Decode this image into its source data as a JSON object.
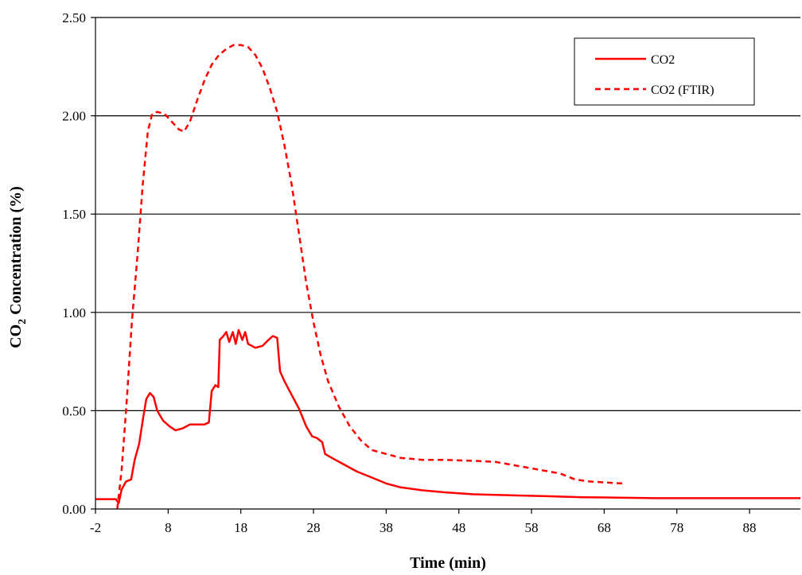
{
  "chart_data": {
    "type": "line",
    "title": "",
    "xlabel": "Time (min)",
    "ylabel_main": "CO",
    "ylabel_sub": "2",
    "ylabel_rest": " Concentration (%)",
    "xlim": [
      -2,
      95
    ],
    "ylim": [
      0,
      2.5
    ],
    "x_ticks": [
      -2,
      8,
      18,
      28,
      38,
      48,
      58,
      68,
      78,
      88
    ],
    "x_tick_labels": [
      "-2",
      "8",
      "18",
      "28",
      "38",
      "48",
      "58",
      "68",
      "78",
      "88"
    ],
    "y_ticks": [
      0,
      0.5,
      1.0,
      1.5,
      2.0,
      2.5
    ],
    "y_tick_labels": [
      "0.00",
      "0.50",
      "1.00",
      "1.50",
      "2.00",
      "2.50"
    ],
    "grid": "horizontal",
    "legend_position": "top-right",
    "series": [
      {
        "name": "CO2",
        "color": "#ff0000",
        "dash": "solid",
        "points": [
          [
            -2,
            0.05
          ],
          [
            0.8,
            0.05
          ],
          [
            1.2,
            0.03
          ],
          [
            1.6,
            0.1
          ],
          [
            2.2,
            0.14
          ],
          [
            2.9,
            0.15
          ],
          [
            3.4,
            0.25
          ],
          [
            4.0,
            0.33
          ],
          [
            4.5,
            0.45
          ],
          [
            5.0,
            0.56
          ],
          [
            5.5,
            0.59
          ],
          [
            6.0,
            0.57
          ],
          [
            6.5,
            0.5
          ],
          [
            7.3,
            0.45
          ],
          [
            8.2,
            0.42
          ],
          [
            9.0,
            0.4
          ],
          [
            10.0,
            0.41
          ],
          [
            11.0,
            0.43
          ],
          [
            12.0,
            0.43
          ],
          [
            13.0,
            0.43
          ],
          [
            13.6,
            0.44
          ],
          [
            14.0,
            0.6
          ],
          [
            14.5,
            0.63
          ],
          [
            14.9,
            0.62
          ],
          [
            15.1,
            0.86
          ],
          [
            15.6,
            0.88
          ],
          [
            16.0,
            0.9
          ],
          [
            16.4,
            0.85
          ],
          [
            16.9,
            0.9
          ],
          [
            17.3,
            0.84
          ],
          [
            17.7,
            0.91
          ],
          [
            18.2,
            0.86
          ],
          [
            18.6,
            0.9
          ],
          [
            19.0,
            0.84
          ],
          [
            20.0,
            0.82
          ],
          [
            21.0,
            0.83
          ],
          [
            21.8,
            0.86
          ],
          [
            22.4,
            0.88
          ],
          [
            23.0,
            0.87
          ],
          [
            23.4,
            0.7
          ],
          [
            24.0,
            0.65
          ],
          [
            25.0,
            0.58
          ],
          [
            26.0,
            0.51
          ],
          [
            27.0,
            0.42
          ],
          [
            27.8,
            0.37
          ],
          [
            28.5,
            0.36
          ],
          [
            29.2,
            0.34
          ],
          [
            29.6,
            0.28
          ],
          [
            30.5,
            0.26
          ],
          [
            32.0,
            0.23
          ],
          [
            34.0,
            0.19
          ],
          [
            36.0,
            0.16
          ],
          [
            38.0,
            0.13
          ],
          [
            40.0,
            0.11
          ],
          [
            43.0,
            0.095
          ],
          [
            46.0,
            0.085
          ],
          [
            50.0,
            0.075
          ],
          [
            55.0,
            0.07
          ],
          [
            60.0,
            0.065
          ],
          [
            65.0,
            0.06
          ],
          [
            70.0,
            0.058
          ],
          [
            75.0,
            0.055
          ],
          [
            80.0,
            0.055
          ],
          [
            85.0,
            0.055
          ],
          [
            90.0,
            0.055
          ],
          [
            95.0,
            0.055
          ]
        ]
      },
      {
        "name": "CO2 (FTIR)",
        "color": "#ff0000",
        "dash": "dashed",
        "points": [
          [
            1.0,
            0.0
          ],
          [
            1.6,
            0.2
          ],
          [
            2.3,
            0.55
          ],
          [
            3.0,
            0.95
          ],
          [
            3.8,
            1.3
          ],
          [
            4.5,
            1.65
          ],
          [
            5.2,
            1.92
          ],
          [
            5.8,
            2.01
          ],
          [
            6.5,
            2.02
          ],
          [
            7.5,
            2.01
          ],
          [
            8.5,
            1.97
          ],
          [
            9.5,
            1.93
          ],
          [
            10.2,
            1.92
          ],
          [
            11.0,
            1.97
          ],
          [
            12.0,
            2.08
          ],
          [
            13.0,
            2.18
          ],
          [
            14.0,
            2.26
          ],
          [
            15.0,
            2.31
          ],
          [
            16.0,
            2.34
          ],
          [
            17.0,
            2.36
          ],
          [
            18.0,
            2.36
          ],
          [
            19.0,
            2.35
          ],
          [
            20.0,
            2.31
          ],
          [
            21.0,
            2.24
          ],
          [
            22.0,
            2.14
          ],
          [
            23.0,
            2.02
          ],
          [
            24.0,
            1.85
          ],
          [
            25.0,
            1.65
          ],
          [
            26.0,
            1.4
          ],
          [
            27.0,
            1.15
          ],
          [
            28.0,
            0.95
          ],
          [
            29.0,
            0.78
          ],
          [
            30.0,
            0.65
          ],
          [
            31.5,
            0.52
          ],
          [
            33.0,
            0.42
          ],
          [
            34.5,
            0.35
          ],
          [
            36.0,
            0.3
          ],
          [
            38.0,
            0.28
          ],
          [
            40.0,
            0.26
          ],
          [
            43.0,
            0.25
          ],
          [
            46.0,
            0.25
          ],
          [
            50.0,
            0.245
          ],
          [
            53.0,
            0.24
          ],
          [
            56.0,
            0.22
          ],
          [
            59.0,
            0.2
          ],
          [
            62.0,
            0.18
          ],
          [
            64.0,
            0.15
          ],
          [
            66.0,
            0.14
          ],
          [
            68.0,
            0.135
          ],
          [
            70.5,
            0.13
          ]
        ]
      }
    ]
  }
}
